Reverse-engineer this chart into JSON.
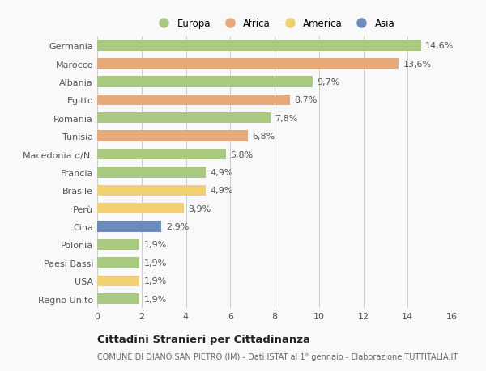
{
  "countries": [
    "Germania",
    "Marocco",
    "Albania",
    "Egitto",
    "Romania",
    "Tunisia",
    "Macedonia d/N.",
    "Francia",
    "Brasile",
    "Perù",
    "Cina",
    "Polonia",
    "Paesi Bassi",
    "USA",
    "Regno Unito"
  ],
  "values": [
    14.6,
    13.6,
    9.7,
    8.7,
    7.8,
    6.8,
    5.8,
    4.9,
    4.9,
    3.9,
    2.9,
    1.9,
    1.9,
    1.9,
    1.9
  ],
  "labels": [
    "14,6%",
    "13,6%",
    "9,7%",
    "8,7%",
    "7,8%",
    "6,8%",
    "5,8%",
    "4,9%",
    "4,9%",
    "3,9%",
    "2,9%",
    "1,9%",
    "1,9%",
    "1,9%",
    "1,9%"
  ],
  "continents": [
    "Europa",
    "Africa",
    "Europa",
    "Africa",
    "Europa",
    "Africa",
    "Europa",
    "Europa",
    "America",
    "America",
    "Asia",
    "Europa",
    "Europa",
    "America",
    "Europa"
  ],
  "colors": {
    "Europa": "#a8c97f",
    "Africa": "#e8a97a",
    "America": "#f0d070",
    "Asia": "#6b8cba"
  },
  "title": "Cittadini Stranieri per Cittadinanza",
  "subtitle": "COMUNE DI DIANO SAN PIETRO (IM) - Dati ISTAT al 1° gennaio - Elaborazione TUTTITALIA.IT",
  "xlim": [
    0,
    16
  ],
  "xticks": [
    0,
    2,
    4,
    6,
    8,
    10,
    12,
    14,
    16
  ],
  "background_color": "#f9f9f9",
  "bar_height": 0.6,
  "grid_color": "#cccccc",
  "text_color": "#555555",
  "label_fontsize": 8,
  "ytick_fontsize": 8,
  "xtick_fontsize": 8
}
